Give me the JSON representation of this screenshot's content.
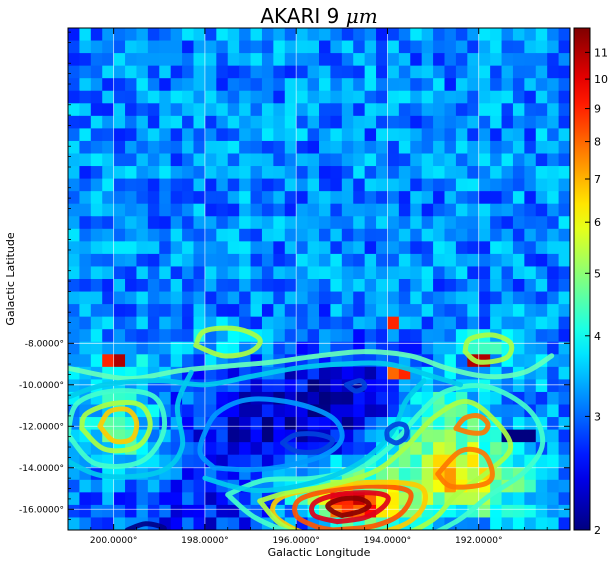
{
  "chart_data": {
    "type": "heatmap",
    "title_text": "AKARI 9 ",
    "title_unit": "μm",
    "xlabel": "Galactic Longitude",
    "ylabel": "Galactic Latitude",
    "xlim": [
      201.0,
      190.0
    ],
    "ylim": [
      7.2,
      -17.0
    ],
    "grid": true,
    "x_ticks": [
      {
        "value": 200.0,
        "label": "200.0000°"
      },
      {
        "value": 198.0,
        "label": "198.0000°"
      },
      {
        "value": 196.0,
        "label": "196.0000°"
      },
      {
        "value": 194.0,
        "label": "194.0000°"
      },
      {
        "value": 192.0,
        "label": "192.0000°"
      }
    ],
    "y_ticks": [
      {
        "value": -16.0,
        "label": "-16.0000°"
      },
      {
        "value": -14.0,
        "label": "-14.0000°"
      },
      {
        "value": -12.0,
        "label": "-12.0000°"
      },
      {
        "value": -10.0,
        "label": "-10.0000°"
      },
      {
        "value": -8.0,
        "label": "-8.0000°"
      }
    ],
    "colorbar": {
      "colormap": "jet",
      "scale": "log",
      "range": [
        2,
        12
      ],
      "major_ticks": [
        {
          "value": 2,
          "label": "2"
        },
        {
          "value": 3,
          "label": "3"
        },
        {
          "value": 4,
          "label": "4"
        },
        {
          "value": 5,
          "label": "5"
        },
        {
          "value": 6,
          "label": "6"
        },
        {
          "value": 7,
          "label": "7"
        },
        {
          "value": 8,
          "label": "8"
        },
        {
          "value": 9,
          "label": "9"
        },
        {
          "value": 10,
          "label": "10"
        },
        {
          "value": 11,
          "label": "11"
        }
      ]
    },
    "image": {
      "cols": 44,
      "rows": 40,
      "background": 3.2,
      "components": [
        {
          "lon": 194.7,
          "lat": -15.8,
          "amp": 6.5,
          "sx": 0.5,
          "sy": 0.45
        },
        {
          "lon": 194.0,
          "lat": -15.0,
          "amp": 1.8,
          "sx": 1.6,
          "sy": 1.0
        },
        {
          "lon": 192.2,
          "lat": -14.5,
          "amp": 2.0,
          "sx": 0.7,
          "sy": 1.0
        },
        {
          "lon": 192.8,
          "lat": -12.2,
          "amp": 1.6,
          "sx": 0.8,
          "sy": 1.6
        },
        {
          "lon": 199.8,
          "lat": -12.0,
          "amp": 1.3,
          "sx": 0.5,
          "sy": 1.3
        },
        {
          "lon": 196.5,
          "lat": -12.0,
          "amp": -0.9,
          "sx": 1.6,
          "sy": 2.2
        },
        {
          "lon": 194.5,
          "lat": -10.3,
          "amp": -0.7,
          "sx": 1.0,
          "sy": 1.5
        },
        {
          "lon": 199.8,
          "lat": -8.8,
          "amp": 0.7,
          "sx": 0.7,
          "sy": 0.6
        },
        {
          "lon": 197.8,
          "lat": -8.0,
          "amp": 0.5,
          "sx": 0.8,
          "sy": 0.6
        },
        {
          "lon": 191.8,
          "lat": -8.2,
          "amp": 0.6,
          "sx": 0.7,
          "sy": 0.6
        },
        {
          "lon": 198.0,
          "lat": -16.2,
          "amp": -0.6,
          "sx": 1.5,
          "sy": 1.0
        }
      ],
      "hot_pixels": [
        {
          "lon": 200.0,
          "lat": -9.0,
          "value": 11
        },
        {
          "lon": 199.8,
          "lat": -9.0,
          "value": 11
        },
        {
          "lon": 200.0,
          "lat": -8.8,
          "value": 11
        },
        {
          "lon": 199.8,
          "lat": -8.8,
          "value": 11
        },
        {
          "lon": 200.2,
          "lat": -9.0,
          "value": 9
        },
        {
          "lon": 193.8,
          "lat": -9.4,
          "value": 11
        },
        {
          "lon": 193.6,
          "lat": -9.4,
          "value": 9
        },
        {
          "lon": 193.8,
          "lat": -9.7,
          "value": 8
        },
        {
          "lon": 191.8,
          "lat": -9.0,
          "value": 11
        },
        {
          "lon": 192.0,
          "lat": -9.0,
          "value": 11
        },
        {
          "lon": 192.2,
          "lat": -8.8,
          "value": 11
        },
        {
          "lon": 194.0,
          "lat": -7.3,
          "value": 9
        },
        {
          "lon": 191.4,
          "lat": -12.2,
          "value": 2
        },
        {
          "lon": 191.2,
          "lat": -12.2,
          "value": 2
        },
        {
          "lon": 191.0,
          "lat": -12.2,
          "value": 2
        }
      ]
    },
    "contours": [
      {
        "color": "#8b0000",
        "points": [
          [
            195.0,
            -16.3
          ],
          [
            194.6,
            -16.1
          ],
          [
            194.4,
            -15.8
          ],
          [
            194.6,
            -15.5
          ],
          [
            195.0,
            -15.5
          ],
          [
            195.3,
            -15.8
          ],
          [
            195.2,
            -16.1
          ],
          [
            195.0,
            -16.3
          ]
        ]
      },
      {
        "color": "#e0001a",
        "points": [
          [
            195.1,
            -16.6
          ],
          [
            194.5,
            -16.4
          ],
          [
            194.1,
            -15.9
          ],
          [
            194.0,
            -15.4
          ],
          [
            194.4,
            -15.2
          ],
          [
            195.1,
            -15.3
          ],
          [
            195.6,
            -15.7
          ],
          [
            195.6,
            -16.3
          ],
          [
            195.1,
            -16.6
          ]
        ]
      },
      {
        "color": "#ff5500",
        "points": [
          [
            195.2,
            -17.0
          ],
          [
            194.3,
            -16.8
          ],
          [
            193.7,
            -16.2
          ],
          [
            193.5,
            -15.2
          ],
          [
            194.1,
            -14.9
          ],
          [
            195.0,
            -15.0
          ],
          [
            195.9,
            -15.5
          ],
          [
            196.0,
            -16.3
          ],
          [
            195.6,
            -16.8
          ],
          [
            195.2,
            -17.0
          ]
        ]
      },
      {
        "color": "#ffcc00",
        "points": [
          [
            195.4,
            -17.3
          ],
          [
            194.4,
            -17.2
          ],
          [
            193.6,
            -16.7
          ],
          [
            193.2,
            -15.8
          ],
          [
            193.3,
            -14.9
          ],
          [
            194.2,
            -14.7
          ],
          [
            195.3,
            -14.9
          ],
          [
            196.3,
            -15.4
          ],
          [
            196.5,
            -16.2
          ],
          [
            196.0,
            -17.0
          ],
          [
            195.4,
            -17.3
          ]
        ]
      },
      {
        "color": "#aaff44",
        "points": [
          [
            196.8,
            -15.6
          ],
          [
            196.2,
            -16.9
          ],
          [
            195.0,
            -17.5
          ],
          [
            193.8,
            -17.3
          ],
          [
            193.0,
            -16.5
          ],
          [
            192.5,
            -15.3
          ],
          [
            191.8,
            -14.2
          ],
          [
            191.3,
            -13.0
          ],
          [
            191.7,
            -11.6
          ],
          [
            192.3,
            -10.8
          ],
          [
            193.0,
            -11.6
          ],
          [
            193.6,
            -13.0
          ],
          [
            194.3,
            -14.2
          ],
          [
            195.4,
            -14.9
          ],
          [
            196.2,
            -15.2
          ],
          [
            196.8,
            -15.6
          ]
        ]
      },
      {
        "color": "#44ffcc",
        "points": [
          [
            197.5,
            -15.3
          ],
          [
            196.9,
            -16.4
          ],
          [
            196.0,
            -17.2
          ],
          [
            195.0,
            -17.6
          ],
          [
            193.5,
            -17.5
          ],
          [
            192.5,
            -16.6
          ],
          [
            191.8,
            -15.4
          ],
          [
            191.0,
            -14.2
          ],
          [
            190.6,
            -12.8
          ],
          [
            190.9,
            -11.2
          ],
          [
            191.8,
            -10.1
          ],
          [
            192.7,
            -10.3
          ],
          [
            193.3,
            -11.4
          ],
          [
            193.9,
            -12.9
          ],
          [
            194.6,
            -14.0
          ],
          [
            195.6,
            -14.5
          ],
          [
            196.7,
            -14.6
          ],
          [
            197.5,
            -15.3
          ]
        ]
      },
      {
        "color": "#ff7700",
        "points": [
          [
            192.9,
            -14.3
          ],
          [
            192.4,
            -13.2
          ],
          [
            191.9,
            -13.3
          ],
          [
            191.7,
            -14.3
          ],
          [
            191.9,
            -14.8
          ],
          [
            192.6,
            -14.9
          ],
          [
            192.9,
            -14.3
          ]
        ]
      },
      {
        "color": "#ffcc00",
        "points": [
          [
            200.3,
            -12.0
          ],
          [
            200.0,
            -12.7
          ],
          [
            199.6,
            -12.6
          ],
          [
            199.5,
            -11.8
          ],
          [
            199.7,
            -11.2
          ],
          [
            200.1,
            -11.3
          ],
          [
            200.3,
            -12.0
          ]
        ]
      },
      {
        "color": "#aaff44",
        "points": [
          [
            200.7,
            -12.1
          ],
          [
            200.2,
            -13.1
          ],
          [
            199.5,
            -13.0
          ],
          [
            199.2,
            -12.0
          ],
          [
            199.4,
            -11.0
          ],
          [
            200.0,
            -10.9
          ],
          [
            200.6,
            -11.4
          ],
          [
            200.7,
            -12.1
          ]
        ]
      },
      {
        "color": "#44ffcc",
        "points": [
          [
            201.0,
            -12.4
          ],
          [
            200.4,
            -13.8
          ],
          [
            199.4,
            -13.7
          ],
          [
            198.9,
            -12.2
          ],
          [
            199.1,
            -10.6
          ],
          [
            200.0,
            -10.3
          ],
          [
            200.8,
            -10.9
          ],
          [
            201.0,
            -12.4
          ]
        ]
      },
      {
        "color": "#ff7700",
        "points": [
          [
            192.5,
            -12.1
          ],
          [
            192.3,
            -11.6
          ],
          [
            192.0,
            -11.5
          ],
          [
            191.8,
            -11.9
          ],
          [
            191.9,
            -12.3
          ],
          [
            192.2,
            -12.3
          ],
          [
            192.5,
            -12.1
          ]
        ]
      },
      {
        "color": "#aaff44",
        "points": [
          [
            198.2,
            -8.1
          ],
          [
            197.6,
            -8.6
          ],
          [
            197.0,
            -8.4
          ],
          [
            196.8,
            -7.8
          ],
          [
            197.3,
            -7.3
          ],
          [
            198.0,
            -7.4
          ],
          [
            198.2,
            -8.1
          ]
        ]
      },
      {
        "color": "#aaff44",
        "points": [
          [
            192.3,
            -8.4
          ],
          [
            192.0,
            -8.9
          ],
          [
            191.4,
            -8.7
          ],
          [
            191.3,
            -8.0
          ],
          [
            191.7,
            -7.6
          ],
          [
            192.2,
            -7.8
          ],
          [
            192.3,
            -8.4
          ]
        ]
      },
      {
        "color": "#66ffbb",
        "points": [
          [
            201.0,
            -9.2
          ],
          [
            199.7,
            -9.7
          ],
          [
            198.5,
            -9.3
          ],
          [
            197.5,
            -9.1
          ],
          [
            196.5,
            -8.9
          ],
          [
            195.5,
            -8.6
          ],
          [
            194.5,
            -8.4
          ],
          [
            193.5,
            -8.6
          ],
          [
            192.7,
            -9.2
          ],
          [
            191.8,
            -9.6
          ],
          [
            191.0,
            -9.4
          ],
          [
            190.4,
            -8.6
          ]
        ]
      },
      {
        "color": "#00ccee",
        "points": [
          [
            201.0,
            -10.6
          ],
          [
            200.2,
            -10.0
          ],
          [
            199.0,
            -9.8
          ],
          [
            198.0,
            -10.0
          ],
          [
            197.0,
            -9.6
          ],
          [
            196.0,
            -9.2
          ],
          [
            195.0,
            -9.0
          ],
          [
            194.0,
            -9.0
          ],
          [
            193.0,
            -9.6
          ],
          [
            192.4,
            -10.0
          ]
        ]
      },
      {
        "color": "#00ccee",
        "points": [
          [
            201.0,
            -13.7
          ],
          [
            200.2,
            -14.4
          ],
          [
            199.0,
            -14.2
          ],
          [
            198.5,
            -13.0
          ],
          [
            198.6,
            -11.0
          ],
          [
            198.3,
            -9.4
          ]
        ]
      },
      {
        "color": "#00ccee",
        "points": [
          [
            198.0,
            -14.5
          ],
          [
            197.4,
            -14.9
          ],
          [
            196.8,
            -15.1
          ],
          [
            196.0,
            -14.9
          ],
          [
            195.2,
            -14.4
          ],
          [
            194.5,
            -13.6
          ],
          [
            193.9,
            -12.3
          ],
          [
            193.6,
            -10.8
          ],
          [
            193.2,
            -9.8
          ]
        ]
      },
      {
        "color": "#0099ff",
        "points": [
          [
            197.8,
            -14.0
          ],
          [
            197.0,
            -14.1
          ],
          [
            196.2,
            -13.9
          ],
          [
            195.4,
            -13.4
          ],
          [
            195.0,
            -12.6
          ],
          [
            195.2,
            -11.6
          ],
          [
            196.0,
            -10.9
          ],
          [
            197.0,
            -10.7
          ],
          [
            197.7,
            -11.3
          ],
          [
            198.0,
            -12.3
          ],
          [
            198.1,
            -13.3
          ],
          [
            197.8,
            -14.0
          ]
        ]
      },
      {
        "color": "#0044dd",
        "points": [
          [
            196.3,
            -12.8
          ],
          [
            196.0,
            -13.2
          ],
          [
            195.5,
            -13.2
          ],
          [
            195.2,
            -12.7
          ],
          [
            195.5,
            -12.4
          ],
          [
            196.0,
            -12.4
          ],
          [
            196.3,
            -12.8
          ]
        ]
      },
      {
        "color": "#0044dd",
        "points": [
          [
            194.0,
            -12.6
          ],
          [
            193.8,
            -12.8
          ],
          [
            193.6,
            -12.5
          ],
          [
            193.6,
            -12.0
          ],
          [
            193.8,
            -11.9
          ],
          [
            194.0,
            -12.2
          ],
          [
            194.0,
            -12.6
          ]
        ]
      },
      {
        "color": "#0044dd",
        "points": [
          [
            194.9,
            -10.0
          ],
          [
            194.7,
            -10.3
          ],
          [
            194.5,
            -10.1
          ],
          [
            194.6,
            -9.8
          ],
          [
            194.9,
            -10.0
          ]
        ]
      },
      {
        "color": "#000088",
        "points": [
          [
            199.7,
            -17.0
          ],
          [
            199.3,
            -16.7
          ],
          [
            198.9,
            -16.9
          ],
          [
            199.0,
            -17.1
          ]
        ]
      }
    ]
  }
}
